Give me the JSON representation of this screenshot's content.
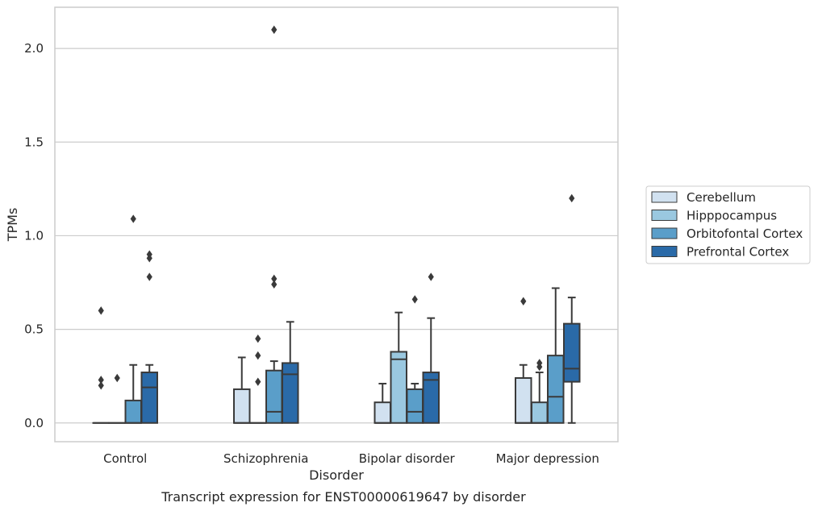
{
  "chart_data": {
    "type": "box",
    "title": "",
    "caption": "Transcript expression for ENST00000619647 by disorder",
    "xlabel": "Disorder",
    "ylabel": "TPMs",
    "ylim": [
      -0.1,
      2.22
    ],
    "yticks": [
      "0.0",
      "0.5",
      "1.0",
      "1.5",
      "2.0"
    ],
    "grid": "horizontal",
    "legend_position": "right",
    "categories": [
      "Control",
      "Schizophrenia",
      "Bipolar disorder",
      "Major depression"
    ],
    "series": [
      {
        "name": "Cerebellum",
        "color": "#d1e1f0",
        "boxes": [
          {
            "q1": 0,
            "median": 0,
            "q3": 0,
            "whisker_low": 0,
            "whisker_high": 0,
            "outliers": [
              0.6,
              0.23,
              0.2
            ]
          },
          {
            "q1": 0,
            "median": 0,
            "q3": 0.18,
            "whisker_low": 0,
            "whisker_high": 0.35,
            "outliers": []
          },
          {
            "q1": 0,
            "median": 0,
            "q3": 0.11,
            "whisker_low": 0,
            "whisker_high": 0.21,
            "outliers": []
          },
          {
            "q1": 0,
            "median": 0,
            "q3": 0.24,
            "whisker_low": 0,
            "whisker_high": 0.31,
            "outliers": [
              0.65
            ]
          }
        ]
      },
      {
        "name": "Hipppocampus",
        "color": "#9ac8e0",
        "boxes": [
          {
            "q1": 0,
            "median": 0,
            "q3": 0,
            "whisker_low": 0,
            "whisker_high": 0,
            "outliers": [
              0.24
            ]
          },
          {
            "q1": 0,
            "median": 0,
            "q3": 0,
            "whisker_low": 0,
            "whisker_high": 0,
            "outliers": [
              0.45,
              0.36,
              0.22
            ]
          },
          {
            "q1": 0,
            "median": 0.34,
            "q3": 0.38,
            "whisker_low": 0,
            "whisker_high": 0.59,
            "outliers": []
          },
          {
            "q1": 0,
            "median": 0,
            "q3": 0.11,
            "whisker_low": 0,
            "whisker_high": 0.27,
            "outliers": [
              0.32,
              0.3
            ]
          }
        ]
      },
      {
        "name": "Orbitofontal Cortex",
        "color": "#5a9ec9",
        "boxes": [
          {
            "q1": 0,
            "median": 0,
            "q3": 0.12,
            "whisker_low": 0,
            "whisker_high": 0.31,
            "outliers": [
              1.09
            ]
          },
          {
            "q1": 0,
            "median": 0.06,
            "q3": 0.28,
            "whisker_low": 0,
            "whisker_high": 0.33,
            "outliers": [
              2.1,
              0.77,
              0.74
            ]
          },
          {
            "q1": 0,
            "median": 0.06,
            "q3": 0.18,
            "whisker_low": 0,
            "whisker_high": 0.21,
            "outliers": [
              0.66
            ]
          },
          {
            "q1": 0,
            "median": 0.14,
            "q3": 0.36,
            "whisker_low": 0,
            "whisker_high": 0.72,
            "outliers": []
          }
        ]
      },
      {
        "name": "Prefrontal Cortex",
        "color": "#2a6aa8",
        "boxes": [
          {
            "q1": 0,
            "median": 0.19,
            "q3": 0.27,
            "whisker_low": 0,
            "whisker_high": 0.31,
            "outliers": [
              0.9,
              0.88,
              0.78
            ]
          },
          {
            "q1": 0,
            "median": 0.26,
            "q3": 0.32,
            "whisker_low": 0,
            "whisker_high": 0.54,
            "outliers": []
          },
          {
            "q1": 0,
            "median": 0.23,
            "q3": 0.27,
            "whisker_low": 0,
            "whisker_high": 0.56,
            "outliers": [
              0.78
            ]
          },
          {
            "q1": 0.22,
            "median": 0.29,
            "q3": 0.53,
            "whisker_low": 0,
            "whisker_high": 0.67,
            "outliers": [
              1.2
            ]
          }
        ]
      }
    ]
  }
}
